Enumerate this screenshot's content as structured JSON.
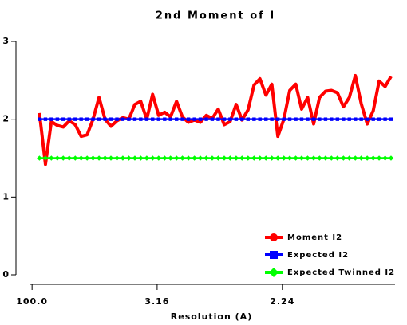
{
  "chart_data": {
    "type": "line",
    "title": "2nd Moment of I",
    "x_label": "Resolution (A)",
    "x": [
      0.006,
      0.0108,
      0.0155,
      0.0203,
      0.025,
      0.0298,
      0.0346,
      0.0393,
      0.0441,
      0.0488,
      0.0536,
      0.0584,
      0.0631,
      0.0679,
      0.0726,
      0.0774,
      0.0822,
      0.0869,
      0.0917,
      0.0964,
      0.1012,
      0.106,
      0.1107,
      0.1155,
      0.1202,
      0.125,
      0.1298,
      0.1345,
      0.1393,
      0.144,
      0.1488,
      0.1536,
      0.1583,
      0.1631,
      0.1678,
      0.1726,
      0.1774,
      0.1821,
      0.1869,
      0.1916,
      0.1964,
      0.2012,
      0.2059,
      0.2107,
      0.2154,
      0.2202,
      0.225,
      0.2297,
      0.2345,
      0.2392,
      0.244,
      0.2488,
      0.2535,
      0.2583,
      0.263,
      0.2678,
      0.2726,
      0.2773,
      0.2821,
      0.2868
    ],
    "series": [
      {
        "name": "Moment I2",
        "color": "#ff0000",
        "marker": "circle",
        "values": [
          2.08,
          1.42,
          1.97,
          1.92,
          1.9,
          1.98,
          1.93,
          1.78,
          1.8,
          2.0,
          2.28,
          2.0,
          1.91,
          1.98,
          2.02,
          2.0,
          2.19,
          2.23,
          2.0,
          2.32,
          2.05,
          2.09,
          2.03,
          2.23,
          2.03,
          1.96,
          1.99,
          1.96,
          2.05,
          2.01,
          2.13,
          1.93,
          1.97,
          2.19,
          1.99,
          2.12,
          2.44,
          2.52,
          2.31,
          2.45,
          1.78,
          2.0,
          2.37,
          2.45,
          2.13,
          2.28,
          1.94,
          2.28,
          2.36,
          2.37,
          2.34,
          2.16,
          2.28,
          2.56,
          2.2,
          1.94,
          2.11,
          2.49,
          2.42,
          2.55
        ]
      },
      {
        "name": "Expected I2",
        "color": "#0000ff",
        "marker": "square",
        "values": [
          2,
          2,
          2,
          2,
          2,
          2,
          2,
          2,
          2,
          2,
          2,
          2,
          2,
          2,
          2,
          2,
          2,
          2,
          2,
          2,
          2,
          2,
          2,
          2,
          2,
          2,
          2,
          2,
          2,
          2,
          2,
          2,
          2,
          2,
          2,
          2,
          2,
          2,
          2,
          2,
          2,
          2,
          2,
          2,
          2,
          2,
          2,
          2,
          2,
          2,
          2,
          2,
          2,
          2,
          2,
          2,
          2,
          2,
          2,
          2
        ]
      },
      {
        "name": "Expected Twinned I2",
        "color": "#00ff00",
        "marker": "diamond",
        "values": [
          1.5,
          1.5,
          1.5,
          1.5,
          1.5,
          1.5,
          1.5,
          1.5,
          1.5,
          1.5,
          1.5,
          1.5,
          1.5,
          1.5,
          1.5,
          1.5,
          1.5,
          1.5,
          1.5,
          1.5,
          1.5,
          1.5,
          1.5,
          1.5,
          1.5,
          1.5,
          1.5,
          1.5,
          1.5,
          1.5,
          1.5,
          1.5,
          1.5,
          1.5,
          1.5,
          1.5,
          1.5,
          1.5,
          1.5,
          1.5,
          1.5,
          1.5,
          1.5,
          1.5,
          1.5,
          1.5,
          1.5,
          1.5,
          1.5,
          1.5,
          1.5,
          1.5,
          1.5,
          1.5,
          1.5,
          1.5,
          1.5,
          1.5,
          1.5,
          1.5
        ]
      }
    ],
    "xlim": [
      0,
      0.29
    ],
    "xticks": [
      {
        "value": 0.0001,
        "label": "100.0"
      },
      {
        "value": 0.1,
        "label": "3.16"
      },
      {
        "value": 0.2,
        "label": "2.24"
      }
    ],
    "ylim": [
      0,
      3
    ],
    "yticks": [
      0,
      1,
      2,
      3
    ],
    "grid": false,
    "legend": "lower right"
  }
}
